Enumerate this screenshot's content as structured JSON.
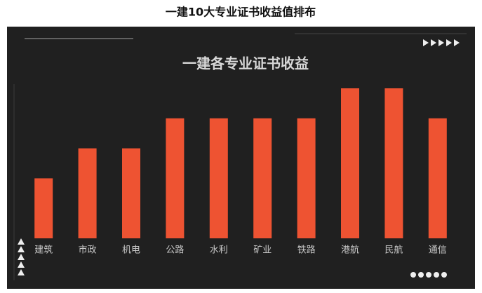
{
  "page_title": "一建10大专业证书收益值排布",
  "chart_data": {
    "type": "bar",
    "title": "一建各专业证书收益",
    "categories": [
      "建筑",
      "市政",
      "机电",
      "公路",
      "水利",
      "矿业",
      "铁路",
      "港航",
      "民航",
      "通信"
    ],
    "values": [
      2,
      3,
      3,
      4,
      4,
      4,
      4,
      5,
      5,
      4
    ],
    "color": "#ee5332",
    "ylim": [
      0,
      5
    ]
  }
}
